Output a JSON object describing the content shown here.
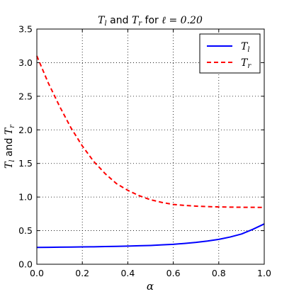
{
  "chart_data": {
    "type": "line",
    "title": {
      "m1": "T",
      "s1": "l",
      "and": " and ",
      "m2": "T",
      "s2": "r",
      "for": " for ",
      "m3": "ℓ = 0.20"
    },
    "xlabel": "α",
    "ylabel": {
      "m1": "T",
      "s1": "l",
      "and": " and ",
      "m2": "T",
      "s2": "r"
    },
    "xlim": [
      0.0,
      1.0
    ],
    "ylim": [
      0.0,
      3.5
    ],
    "xticks": [
      0.0,
      0.2,
      0.4,
      0.6,
      0.8,
      1.0
    ],
    "xtick_labels": [
      "0.0",
      "0.2",
      "0.4",
      "0.6",
      "0.8",
      "1.0"
    ],
    "yticks": [
      0.0,
      0.5,
      1.0,
      1.5,
      2.0,
      2.5,
      3.0,
      3.5
    ],
    "ytick_labels": [
      "0.0",
      "0.5",
      "1.0",
      "1.5",
      "2.0",
      "2.5",
      "3.0",
      "3.5"
    ],
    "grid": true,
    "legend_position": "top-right",
    "x": [
      0.0,
      0.05,
      0.1,
      0.15,
      0.2,
      0.25,
      0.3,
      0.35,
      0.4,
      0.45,
      0.5,
      0.55,
      0.6,
      0.65,
      0.7,
      0.75,
      0.8,
      0.85,
      0.9,
      0.95,
      1.0
    ],
    "series": [
      {
        "name": "T",
        "name_sub": "l",
        "color": "#0000ff",
        "dash": "solid",
        "values": [
          0.25,
          0.252,
          0.254,
          0.256,
          0.258,
          0.26,
          0.263,
          0.266,
          0.27,
          0.275,
          0.28,
          0.288,
          0.297,
          0.31,
          0.325,
          0.345,
          0.37,
          0.405,
          0.45,
          0.52,
          0.6
        ]
      },
      {
        "name": "T",
        "name_sub": "r",
        "color": "#ff0000",
        "dash": "dashed",
        "values": [
          3.1,
          2.7,
          2.35,
          2.03,
          1.76,
          1.53,
          1.35,
          1.2,
          1.1,
          1.02,
          0.96,
          0.92,
          0.89,
          0.875,
          0.865,
          0.858,
          0.853,
          0.85,
          0.848,
          0.847,
          0.846
        ]
      }
    ]
  }
}
